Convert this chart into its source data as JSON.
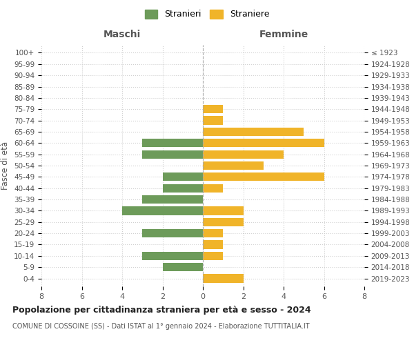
{
  "age_groups": [
    "100+",
    "95-99",
    "90-94",
    "85-89",
    "80-84",
    "75-79",
    "70-74",
    "65-69",
    "60-64",
    "55-59",
    "50-54",
    "45-49",
    "40-44",
    "35-39",
    "30-34",
    "25-29",
    "20-24",
    "15-19",
    "10-14",
    "5-9",
    "0-4"
  ],
  "birth_years": [
    "≤ 1923",
    "1924-1928",
    "1929-1933",
    "1934-1938",
    "1939-1943",
    "1944-1948",
    "1949-1953",
    "1954-1958",
    "1959-1963",
    "1964-1968",
    "1969-1973",
    "1974-1978",
    "1979-1983",
    "1984-1988",
    "1989-1993",
    "1994-1998",
    "1999-2003",
    "2004-2008",
    "2009-2013",
    "2014-2018",
    "2019-2023"
  ],
  "maschi": [
    0,
    0,
    0,
    0,
    0,
    0,
    0,
    0,
    3,
    3,
    0,
    2,
    2,
    3,
    4,
    0,
    3,
    0,
    3,
    2,
    0
  ],
  "femmine": [
    0,
    0,
    0,
    0,
    0,
    1,
    1,
    5,
    6,
    4,
    3,
    6,
    1,
    0,
    2,
    2,
    1,
    1,
    1,
    0,
    2
  ],
  "color_maschi": "#6d9b5a",
  "color_femmine": "#f0b429",
  "title": "Popolazione per cittadinanza straniera per età e sesso - 2024",
  "subtitle": "COMUNE DI COSSOINE (SS) - Dati ISTAT al 1° gennaio 2024 - Elaborazione TUTTITALIA.IT",
  "label_maschi": "Maschi",
  "label_femmine": "Femmine",
  "ylabel_left": "Fasce di età",
  "legend_maschi": "Stranieri",
  "legend_femmine": "Straniere",
  "xlim": 8,
  "background_color": "#ffffff",
  "grid_color": "#d0d0d0"
}
